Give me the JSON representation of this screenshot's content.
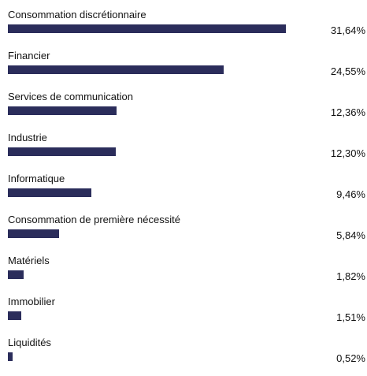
{
  "chart_data": {
    "type": "bar",
    "orientation": "horizontal",
    "categories": [
      "Consommation discrétionnaire",
      "Financier",
      "Services de communication",
      "Industrie",
      "Informatique",
      "Consommation de première nécessité",
      "Matériels",
      "Immobilier",
      "Liquidités"
    ],
    "values": [
      31.64,
      24.55,
      12.36,
      12.3,
      9.46,
      5.84,
      1.82,
      1.51,
      0.52
    ],
    "value_labels": [
      "31,64%",
      "24,55%",
      "12,36%",
      "12,30%",
      "9,46%",
      "5,84%",
      "1,82%",
      "1,51%",
      "0,52%"
    ],
    "xlim": [
      0,
      31.64
    ],
    "bar_color": "#2b2d5b",
    "grid": false,
    "legend": "none"
  }
}
